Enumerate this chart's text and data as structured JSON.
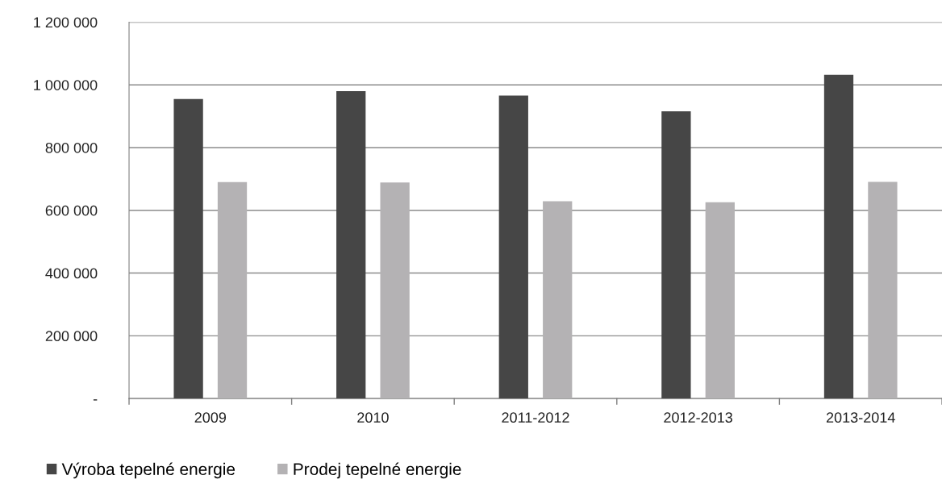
{
  "chart_data": {
    "type": "bar",
    "categories": [
      "2009",
      "2010",
      "2011-2012",
      "2012-2013",
      "2013-2014"
    ],
    "series": [
      {
        "name": "Výroba tepelné energie",
        "color": "#464646",
        "values": [
          955000,
          980000,
          966000,
          916000,
          1032000
        ]
      },
      {
        "name": "Prodej tepelné energie",
        "color": "#b4b2b4",
        "values": [
          690000,
          689000,
          629000,
          626000,
          691000
        ]
      }
    ],
    "ylim": [
      0,
      1200000
    ],
    "yticks": [
      {
        "value": 0,
        "label": "-"
      },
      {
        "value": 200000,
        "label": "200 000"
      },
      {
        "value": 400000,
        "label": "400 000"
      },
      {
        "value": 600000,
        "label": "600 000"
      },
      {
        "value": 800000,
        "label": "800 000"
      },
      {
        "value": 1000000,
        "label": "1 000 000"
      },
      {
        "value": 1200000,
        "label": "1 200 000"
      }
    ],
    "grid": "y",
    "legend": "bottom left"
  }
}
